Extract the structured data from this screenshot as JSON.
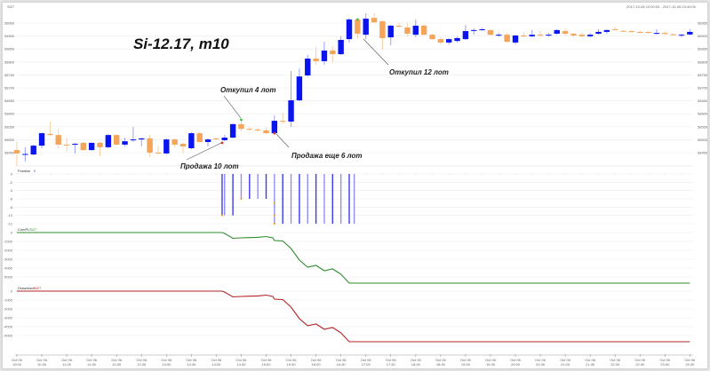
{
  "header": {
    "symbol": "SiZ7",
    "range": "2017-10-06 10:00:00 - 2017-10-06 23:40:00"
  },
  "chart_title": "Si-12.17, m10",
  "colors": {
    "up": "#0a14f0",
    "down": "#f4a55a",
    "cumpl": "#2e8b2e",
    "drawdown": "#b22222",
    "position": "#3a3af0",
    "grid": "#ececec"
  },
  "annotations": [
    {
      "text": "Откупил 4 лот"
    },
    {
      "text": "Продажа 10 лот"
    },
    {
      "text": "Продажа еще 6 лот"
    },
    {
      "text": "Откупил 12 лот"
    }
  ],
  "panes": {
    "position": {
      "label": "Position",
      "value": "0",
      "ticks": [
        "0",
        "-2",
        "-4",
        "-6",
        "-8",
        "-10",
        "-12"
      ]
    },
    "cumpl": {
      "label": "CumPL",
      "value": "SiZ7",
      "ticks": [
        "0",
        "-1000",
        "-2000",
        "-3000",
        "-4000",
        "-5000"
      ]
    },
    "drawdown": {
      "label": "Drawdown",
      "value": "SiZ7",
      "ticks": [
        "0",
        "-1000",
        "-2000",
        "-3000",
        "-4000",
        "-5000"
      ]
    }
  },
  "chart_data": {
    "type": "candlestick",
    "title": "Si-12.17, m10",
    "price_ticks": [
      "58950",
      "58900",
      "58850",
      "58800",
      "58750",
      "58700",
      "58650",
      "58600",
      "58550",
      "58500",
      "58450"
    ],
    "ylim": [
      58450,
      58950
    ],
    "x_ticks": [
      [
        "Oct 06",
        "10:00"
      ],
      [
        "Oct 06",
        "10:30"
      ],
      [
        "Oct 06",
        "11:00"
      ],
      [
        "Oct 06",
        "11:30"
      ],
      [
        "Oct 06",
        "12:00"
      ],
      [
        "Oct 06",
        "12:30"
      ],
      [
        "Oct 06",
        "13:00"
      ],
      [
        "Oct 06",
        "13:30"
      ],
      [
        "Oct 06",
        "14:00"
      ],
      [
        "Oct 06",
        "14:30"
      ],
      [
        "Oct 06",
        "15:00"
      ],
      [
        "Oct 06",
        "15:30"
      ],
      [
        "Oct 06",
        "16:00"
      ],
      [
        "Oct 06",
        "16:30"
      ],
      [
        "Oct 06",
        "17:00"
      ],
      [
        "Oct 06",
        "17:30"
      ],
      [
        "Oct 06",
        "18:00"
      ],
      [
        "Oct 06",
        "18:30"
      ],
      [
        "Oct 06",
        "19:00"
      ],
      [
        "Oct 06",
        "19:30"
      ],
      [
        "Oct 06",
        "20:00"
      ],
      [
        "Oct 06",
        "20:30"
      ],
      [
        "Oct 06",
        "21:00"
      ],
      [
        "Oct 06",
        "21:30"
      ],
      [
        "Oct 06",
        "22:00"
      ],
      [
        "Oct 06",
        "22:30"
      ],
      [
        "Oct 06",
        "23:00"
      ],
      [
        "Oct 06",
        "23:30"
      ]
    ],
    "ohlc": [
      [
        58460,
        58494,
        58399,
        58447
      ],
      [
        58443,
        58471,
        58416,
        58445
      ],
      [
        58443,
        58481,
        58440,
        58477
      ],
      [
        58477,
        58529,
        58467,
        58525
      ],
      [
        58522,
        58570,
        58515,
        58518
      ],
      [
        58518,
        58542,
        58467,
        58481
      ],
      [
        58481,
        58508,
        58453,
        58480
      ],
      [
        58481,
        58488,
        58447,
        58484
      ],
      [
        58488,
        58491,
        58457,
        58460
      ],
      [
        58460,
        58488,
        58457,
        58488
      ],
      [
        58488,
        58491,
        58436,
        58471
      ],
      [
        58471,
        58522,
        58467,
        58518
      ],
      [
        58518,
        58522,
        58477,
        58481
      ],
      [
        58481,
        58508,
        58474,
        58494
      ],
      [
        58498,
        58549,
        58491,
        58501
      ],
      [
        58501,
        58508,
        58474,
        58505
      ],
      [
        58505,
        58518,
        58433,
        58450
      ],
      [
        58450,
        58477,
        58447,
        58449
      ],
      [
        58447,
        58505,
        58443,
        58501
      ],
      [
        58501,
        58505,
        58471,
        58481
      ],
      [
        58484,
        58488,
        58447,
        58474
      ],
      [
        58467,
        58529,
        58463,
        58525
      ],
      [
        58525,
        58529,
        58488,
        58491
      ],
      [
        58491,
        58505,
        58474,
        58501
      ],
      [
        58505,
        58508,
        58498,
        58504
      ],
      [
        58498,
        58518,
        58494,
        58508
      ],
      [
        58508,
        58563,
        58505,
        58560
      ],
      [
        58560,
        58577,
        58532,
        58542
      ],
      [
        58542,
        58549,
        58536,
        58540
      ],
      [
        58539,
        58546,
        58532,
        58537
      ],
      [
        58536,
        58549,
        58522,
        58525
      ],
      [
        58525,
        58594,
        58522,
        58573
      ],
      [
        58573,
        58604,
        58560,
        58572
      ],
      [
        58570,
        58765,
        58549,
        58652
      ],
      [
        58652,
        58775,
        58649,
        58744
      ],
      [
        58748,
        58827,
        58744,
        58813
      ],
      [
        58813,
        58857,
        58789,
        58803
      ],
      [
        58803,
        58878,
        58789,
        58844
      ],
      [
        58844,
        58861,
        58799,
        58830
      ],
      [
        58830,
        58899,
        58827,
        58885
      ],
      [
        58888,
        58970,
        58875,
        58964
      ],
      [
        58964,
        58964,
        58888,
        58909
      ],
      [
        58905,
        58988,
        58888,
        58967
      ],
      [
        58970,
        58988,
        58950,
        58953
      ],
      [
        58957,
        58960,
        58847,
        58892
      ],
      [
        58895,
        58943,
        58864,
        58940
      ],
      [
        58940,
        58950,
        58933,
        58939
      ],
      [
        58933,
        58950,
        58899,
        58909
      ],
      [
        58905,
        58964,
        58895,
        58940
      ],
      [
        58940,
        58946,
        58902,
        58905
      ],
      [
        58905,
        58909,
        58885,
        58888
      ],
      [
        58888,
        58895,
        58868,
        58875
      ],
      [
        58875,
        58892,
        58868,
        58888
      ],
      [
        58881,
        58899,
        58875,
        58892
      ],
      [
        58888,
        58943,
        58885,
        58919
      ],
      [
        58921,
        58930,
        58906,
        58923
      ],
      [
        58924,
        58932,
        58920,
        58926
      ],
      [
        58923,
        58926,
        58902,
        58905
      ],
      [
        58904,
        58913,
        58898,
        58905
      ],
      [
        58905,
        58912,
        58875,
        58878
      ],
      [
        58875,
        58905,
        58868,
        58902
      ],
      [
        58902,
        58916,
        58897,
        58901
      ],
      [
        58899,
        58923,
        58895,
        58905
      ],
      [
        58905,
        58920,
        58897,
        58904
      ],
      [
        58904,
        58913,
        58898,
        58905
      ],
      [
        58909,
        58926,
        58905,
        58923
      ],
      [
        58919,
        58930,
        58902,
        58909
      ],
      [
        58909,
        58912,
        58895,
        58902
      ],
      [
        58905,
        58912,
        58895,
        58899
      ],
      [
        58899,
        58912,
        58895,
        58905
      ],
      [
        58909,
        58926,
        58905,
        58916
      ],
      [
        58916,
        58926,
        58909,
        58923
      ],
      [
        58926,
        58936,
        58922,
        58925
      ],
      [
        58920,
        58924,
        58916,
        58919
      ],
      [
        58919,
        58922,
        58912,
        58917
      ],
      [
        58916,
        58920,
        58911,
        58914
      ],
      [
        58916,
        58916,
        58910,
        58912
      ],
      [
        58911,
        58926,
        58905,
        58912
      ],
      [
        58912,
        58917,
        58905,
        58908
      ],
      [
        58907,
        58910,
        58900,
        58904
      ],
      [
        58902,
        58908,
        58895,
        58905
      ],
      [
        58906,
        58927,
        58903,
        58916
      ]
    ],
    "trades": [
      {
        "bar": 24.7,
        "price": 58488,
        "side": "sell",
        "lots": 10
      },
      {
        "bar": 27,
        "price": 58577,
        "side": "buy",
        "lots": 4
      },
      {
        "bar": 31,
        "price": 58525,
        "side": "sell",
        "lots": 6
      },
      {
        "bar": 41,
        "price": 58964,
        "side": "buy",
        "lots": 12
      }
    ],
    "position": [
      [
        24.7,
        -10
      ],
      [
        25,
        -10
      ],
      [
        26,
        -10
      ],
      [
        27,
        -6
      ],
      [
        28,
        -6
      ],
      [
        29,
        -6
      ],
      [
        30,
        -6
      ],
      [
        31,
        -12
      ],
      [
        32,
        -12
      ],
      [
        33,
        -12
      ],
      [
        34,
        -12
      ],
      [
        35,
        -12
      ],
      [
        36,
        -12
      ],
      [
        37,
        -12
      ],
      [
        38,
        -12
      ],
      [
        39,
        -12
      ],
      [
        40,
        -12
      ],
      [
        40.6,
        -12
      ]
    ],
    "cumpl": [
      [
        0,
        0
      ],
      [
        24.7,
        0
      ],
      [
        25,
        -100
      ],
      [
        26,
        -650
      ],
      [
        27,
        -600
      ],
      [
        28,
        -570
      ],
      [
        29,
        -540
      ],
      [
        30,
        -450
      ],
      [
        30.8,
        -600
      ],
      [
        31,
        -900
      ],
      [
        32,
        -950
      ],
      [
        33,
        -1800
      ],
      [
        34,
        -3100
      ],
      [
        35,
        -3900
      ],
      [
        36,
        -3700
      ],
      [
        37,
        -4300
      ],
      [
        38,
        -4100
      ],
      [
        39,
        -4700
      ],
      [
        40,
        -5700
      ],
      [
        81,
        -5700
      ]
    ],
    "drawdown": [
      [
        0,
        0
      ],
      [
        24.7,
        0
      ],
      [
        25,
        -100
      ],
      [
        26,
        -650
      ],
      [
        27,
        -600
      ],
      [
        28,
        -570
      ],
      [
        29,
        -540
      ],
      [
        30,
        -450
      ],
      [
        30.8,
        -600
      ],
      [
        31,
        -900
      ],
      [
        32,
        -950
      ],
      [
        33,
        -1800
      ],
      [
        34,
        -3100
      ],
      [
        35,
        -3900
      ],
      [
        36,
        -3700
      ],
      [
        37,
        -4300
      ],
      [
        38,
        -4100
      ],
      [
        39,
        -4700
      ],
      [
        40,
        -5700
      ],
      [
        81,
        -5700
      ]
    ]
  }
}
